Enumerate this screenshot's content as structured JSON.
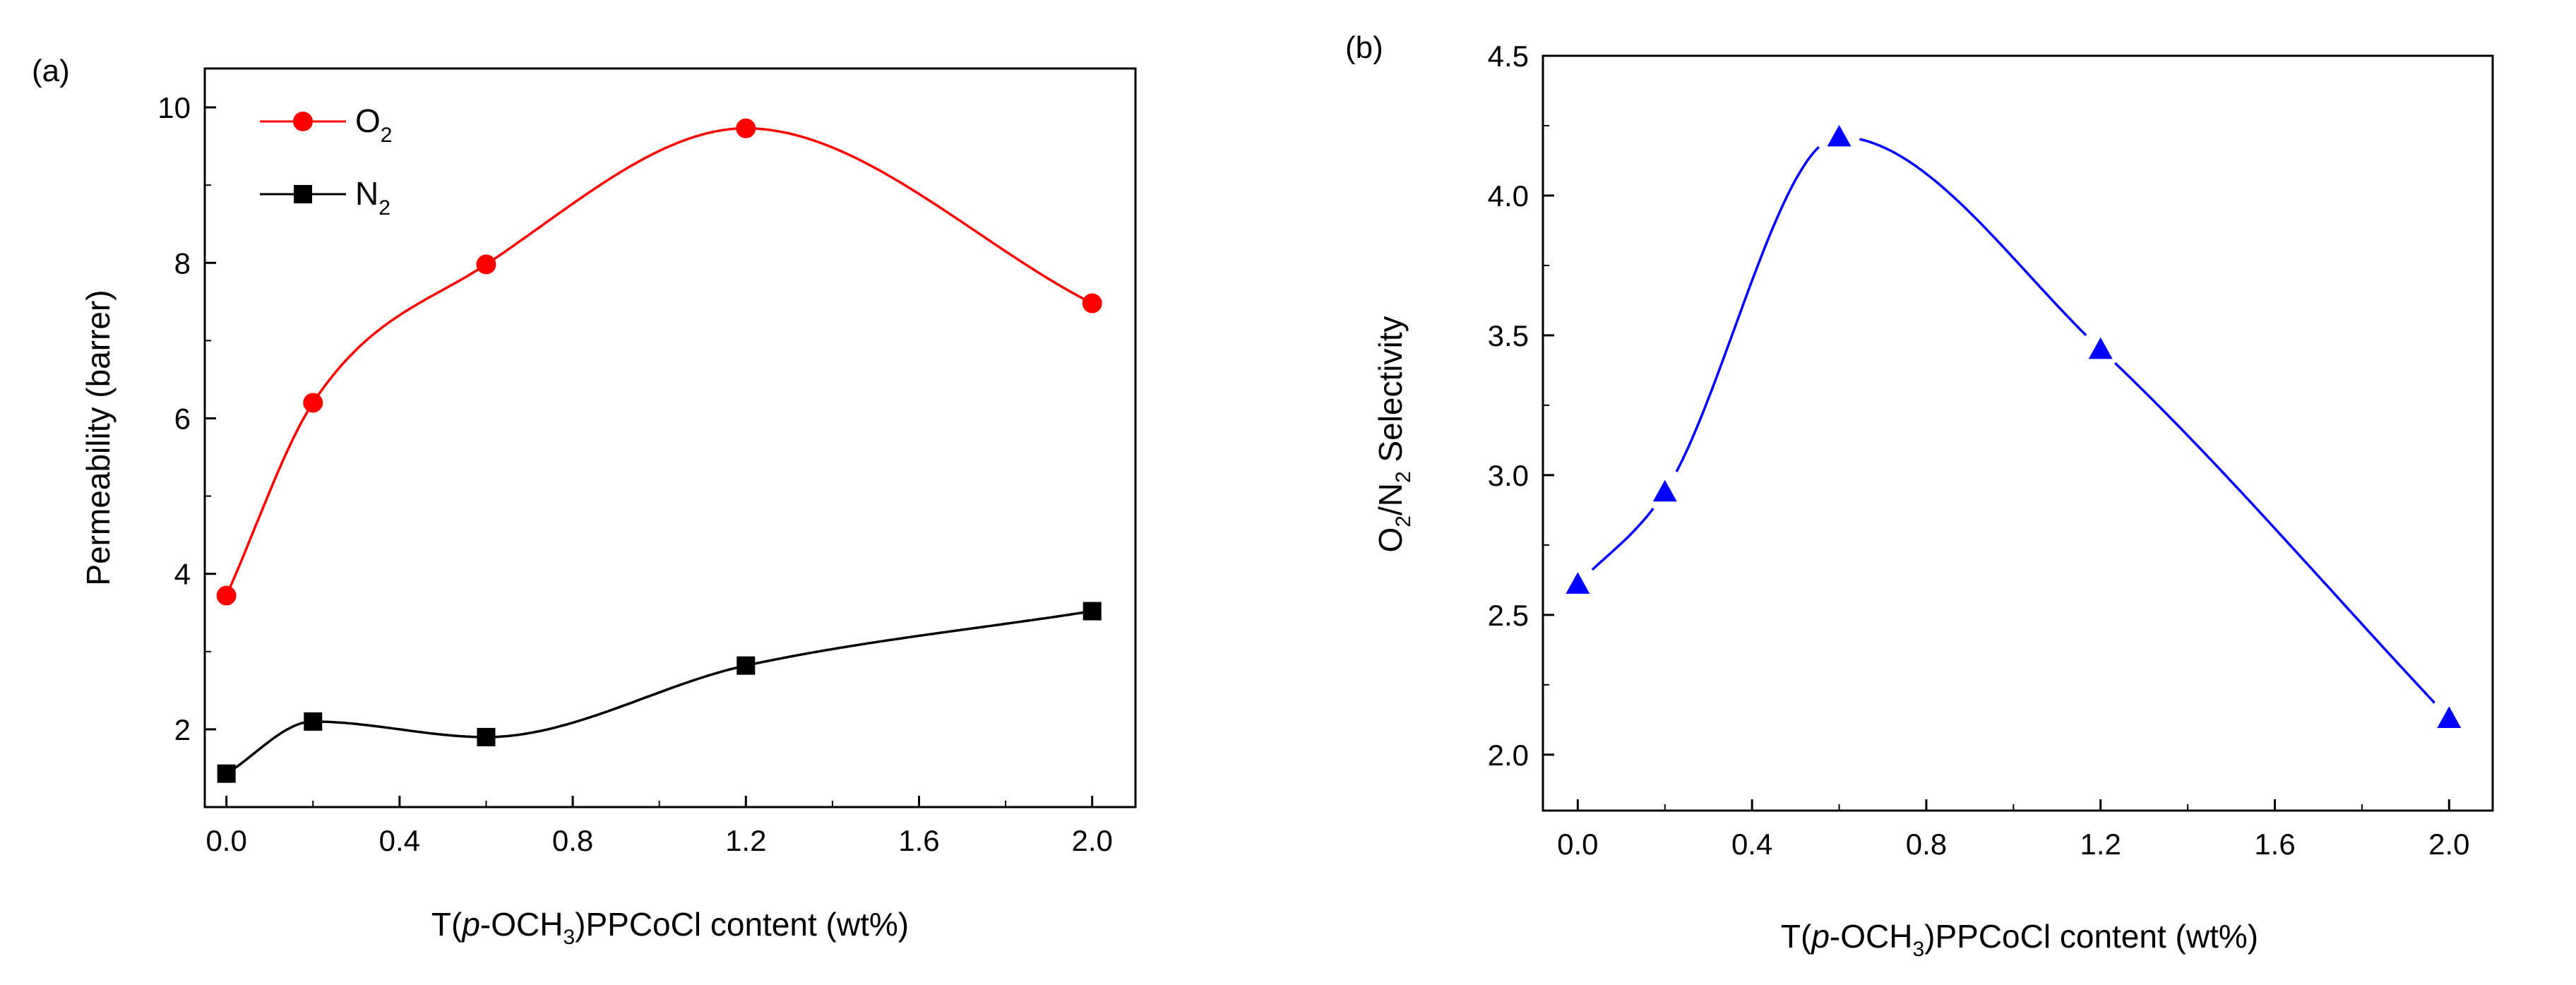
{
  "chart_data": [
    {
      "panel": "(a)",
      "type": "line",
      "xlabel_parts": [
        "T(",
        "p",
        "-OCH",
        "3",
        ")PPCoCl content (wt%)"
      ],
      "ylabel": "Permeability (barrer)",
      "xlim": [
        -0.05,
        2.1
      ],
      "ylim": [
        1,
        10.5
      ],
      "xticks": [
        "0.0",
        "0.4",
        "0.8",
        "1.2",
        "1.6",
        "2.0"
      ],
      "yticks": [
        "2",
        "4",
        "6",
        "8",
        "10"
      ],
      "x": [
        0.0,
        0.2,
        0.6,
        1.2,
        2.0
      ],
      "series": [
        {
          "name": "O",
          "subscript": "2",
          "color": "#ff0000",
          "marker": "circle",
          "values": [
            3.72,
            6.2,
            7.98,
            9.73,
            7.48
          ]
        },
        {
          "name": "N",
          "subscript": "2",
          "color": "#000000",
          "marker": "square",
          "values": [
            1.43,
            2.1,
            1.9,
            2.82,
            3.52
          ]
        }
      ]
    },
    {
      "panel": "(b)",
      "type": "line",
      "xlabel_parts": [
        "T(",
        "p",
        "-OCH",
        "3",
        ")PPCoCl content (wt%)"
      ],
      "ylabel_parts": [
        "O",
        "2",
        "/N",
        "2",
        " Selectivity"
      ],
      "xlim": [
        -0.08,
        2.1
      ],
      "ylim": [
        1.8,
        4.5
      ],
      "xticks": [
        "0.0",
        "0.4",
        "0.8",
        "1.2",
        "1.6",
        "2.0"
      ],
      "yticks": [
        "2.0",
        "2.5",
        "3.0",
        "3.5",
        "4.0",
        "4.5"
      ],
      "x": [
        0.0,
        0.2,
        0.6,
        1.2,
        2.0
      ],
      "series": [
        {
          "name": "O2/N2 Selectivity",
          "color": "#0000ff",
          "marker": "triangle",
          "values": [
            2.61,
            2.94,
            4.21,
            3.45,
            2.13
          ]
        }
      ]
    }
  ]
}
